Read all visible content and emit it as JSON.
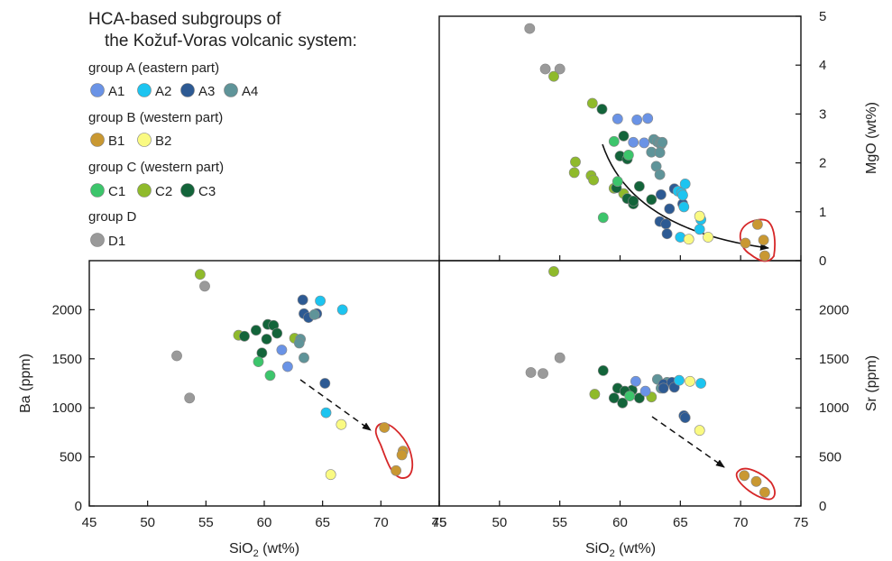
{
  "legend": {
    "title_line1": "HCA-based subgroups of",
    "title_line2": "the Kožuf-Voras volcanic system:",
    "groups": [
      {
        "label": "group A (eastern part)",
        "items": [
          {
            "key": "A1",
            "label": "A1",
            "color": "#6a93e6"
          },
          {
            "key": "A2",
            "label": "A2",
            "color": "#1cc4f0"
          },
          {
            "key": "A3",
            "label": "A3",
            "color": "#2d5a93"
          },
          {
            "key": "A4",
            "label": "A4",
            "color": "#5f9499"
          }
        ]
      },
      {
        "label": "group B (western part)",
        "items": [
          {
            "key": "B1",
            "label": "B1",
            "color": "#c99832"
          },
          {
            "key": "B2",
            "label": "B2",
            "color": "#fafa82"
          }
        ]
      },
      {
        "label": "group C (western part)",
        "items": [
          {
            "key": "C1",
            "label": "C1",
            "color": "#3cc56b"
          },
          {
            "key": "C2",
            "label": "C2",
            "color": "#8fba2b"
          },
          {
            "key": "C3",
            "label": "C3",
            "color": "#13643a"
          }
        ]
      },
      {
        "label": "group D",
        "items": [
          {
            "key": "D1",
            "label": "D1",
            "color": "#9a9a9a"
          }
        ]
      }
    ]
  },
  "chart_data": [
    {
      "type": "scatter",
      "panel": "MgO",
      "xlabel_main": "SiO",
      "xlabel_sub": "2",
      "xlabel_tail": " (wt%)",
      "ylabel": "MgO (wt%)",
      "xlim": [
        45,
        75
      ],
      "ylim": [
        0,
        5
      ],
      "xticks": [],
      "yticks": [
        "0",
        "1",
        "2",
        "3",
        "4",
        "5"
      ],
      "annotation": "curved solid arrow from (58.3, 2.4) to (72.3, 0.25); red outline around high-SiO2 B1 samples",
      "series": [
        {
          "key": "D1",
          "points": [
            [
              52.5,
              4.75
            ],
            [
              53.8,
              3.92
            ],
            [
              55.0,
              3.92
            ]
          ]
        },
        {
          "key": "C2",
          "points": [
            [
              54.5,
              3.77
            ],
            [
              57.7,
              3.22
            ],
            [
              56.3,
              2.02
            ],
            [
              56.2,
              1.8
            ],
            [
              57.6,
              1.74
            ],
            [
              57.8,
              1.65
            ],
            [
              60.3,
              1.37
            ],
            [
              59.5,
              1.48
            ]
          ]
        },
        {
          "key": "C3",
          "points": [
            [
              58.5,
              3.1
            ],
            [
              60.3,
              2.55
            ],
            [
              60.0,
              2.14
            ],
            [
              60.6,
              2.08
            ],
            [
              59.7,
              1.49
            ],
            [
              60.6,
              1.27
            ],
            [
              61.1,
              1.16
            ],
            [
              61.6,
              1.52
            ],
            [
              62.6,
              1.25
            ],
            [
              61.1,
              1.22
            ]
          ]
        },
        {
          "key": "C1",
          "points": [
            [
              59.5,
              2.44
            ],
            [
              59.8,
              1.62
            ],
            [
              58.6,
              0.88
            ],
            [
              60.7,
              2.16
            ]
          ]
        },
        {
          "key": "A1",
          "points": [
            [
              59.8,
              2.9
            ],
            [
              61.1,
              2.42
            ],
            [
              61.4,
              2.88
            ],
            [
              62.3,
              2.91
            ],
            [
              62.0,
              2.41
            ]
          ]
        },
        {
          "key": "A4",
          "points": [
            [
              62.8,
              2.48
            ],
            [
              63.1,
              2.43
            ],
            [
              63.3,
              2.4
            ],
            [
              63.4,
              2.38
            ],
            [
              63.5,
              2.42
            ],
            [
              62.6,
              2.22
            ],
            [
              63.3,
              2.21
            ],
            [
              63.0,
              1.93
            ],
            [
              63.3,
              1.76
            ]
          ]
        },
        {
          "key": "A3",
          "points": [
            [
              63.4,
              1.35
            ],
            [
              63.3,
              0.8
            ],
            [
              63.8,
              0.75
            ],
            [
              63.9,
              0.55
            ],
            [
              64.1,
              1.06
            ],
            [
              64.5,
              1.47
            ],
            [
              65.2,
              1.16
            ]
          ]
        },
        {
          "key": "A2",
          "points": [
            [
              64.8,
              1.42
            ],
            [
              65.1,
              1.39
            ],
            [
              65.4,
              1.57
            ],
            [
              65.2,
              1.34
            ],
            [
              65.3,
              1.1
            ],
            [
              65.0,
              0.48
            ],
            [
              66.7,
              0.84
            ],
            [
              66.6,
              0.64
            ]
          ]
        },
        {
          "key": "B2",
          "points": [
            [
              65.7,
              0.44
            ],
            [
              66.6,
              0.91
            ],
            [
              67.3,
              0.48
            ]
          ]
        },
        {
          "key": "B1",
          "points": [
            [
              70.4,
              0.36
            ],
            [
              71.4,
              0.74
            ],
            [
              71.9,
              0.42
            ],
            [
              72.0,
              0.1
            ]
          ]
        }
      ]
    },
    {
      "type": "scatter",
      "panel": "Ba",
      "xlabel_main": "SiO",
      "xlabel_sub": "2",
      "xlabel_tail": " (wt%)",
      "ylabel": "Ba (ppm)",
      "xlim": [
        45,
        75
      ],
      "ylim": [
        0,
        2500
      ],
      "xticks": [
        "45",
        "50",
        "55",
        "60",
        "65",
        "70",
        "75"
      ],
      "yticks": [
        "0",
        "500",
        "1000",
        "1500",
        "2000"
      ],
      "annotation": "dashed arrow from (62.8, 1270) to (69.8, 760); red outline around high-SiO2 B1 samples",
      "series": [
        {
          "key": "D1",
          "points": [
            [
              54.9,
              2240
            ],
            [
              52.5,
              1530
            ],
            [
              53.6,
              1100
            ]
          ]
        },
        {
          "key": "C2",
          "points": [
            [
              54.5,
              2360
            ],
            [
              57.8,
              1740
            ],
            [
              62.6,
              1710
            ]
          ]
        },
        {
          "key": "C3",
          "points": [
            [
              58.3,
              1730
            ],
            [
              59.3,
              1790
            ],
            [
              60.2,
              1700
            ],
            [
              60.3,
              1850
            ],
            [
              60.8,
              1840
            ],
            [
              61.1,
              1760
            ],
            [
              59.8,
              1560
            ]
          ]
        },
        {
          "key": "C1",
          "points": [
            [
              59.5,
              1470
            ],
            [
              60.5,
              1330
            ]
          ]
        },
        {
          "key": "A1",
          "points": [
            [
              61.5,
              1590
            ],
            [
              62.0,
              1420
            ]
          ]
        },
        {
          "key": "A3",
          "points": [
            [
              63.3,
              2100
            ],
            [
              63.4,
              1960
            ],
            [
              63.8,
              1920
            ],
            [
              64.5,
              1960
            ],
            [
              65.2,
              1250
            ]
          ]
        },
        {
          "key": "A4",
          "points": [
            [
              63.1,
              1700
            ],
            [
              63.0,
              1660
            ],
            [
              63.4,
              1510
            ],
            [
              64.3,
              1950
            ]
          ]
        },
        {
          "key": "A2",
          "points": [
            [
              64.8,
              2090
            ],
            [
              66.7,
              2000
            ],
            [
              65.3,
              950
            ]
          ]
        },
        {
          "key": "B2",
          "points": [
            [
              66.6,
              830
            ],
            [
              65.7,
              320
            ]
          ]
        },
        {
          "key": "B1",
          "points": [
            [
              70.3,
              800
            ],
            [
              71.9,
              560
            ],
            [
              71.8,
              520
            ],
            [
              71.3,
              360
            ]
          ]
        }
      ]
    },
    {
      "type": "scatter",
      "panel": "Sr",
      "xlabel_main": "SiO",
      "xlabel_sub": "2",
      "xlabel_tail": " (wt%)",
      "ylabel": "Sr (ppm)",
      "xlim": [
        45,
        75
      ],
      "ylim": [
        0,
        2500
      ],
      "xticks": [
        "45",
        "50",
        "55",
        "60",
        "65",
        "70",
        "75"
      ],
      "yticks": [
        "0",
        "500",
        "1000",
        "1500",
        "2000"
      ],
      "annotation": "dashed arrow from (62.8, 930) to (68.8, 380); red outline around high-SiO2 B1 samples",
      "series": [
        {
          "key": "C2",
          "points": [
            [
              54.5,
              2390
            ],
            [
              57.9,
              1140
            ],
            [
              62.6,
              1110
            ]
          ]
        },
        {
          "key": "D1",
          "points": [
            [
              55.0,
              1510
            ],
            [
              52.6,
              1360
            ],
            [
              53.6,
              1350
            ]
          ]
        },
        {
          "key": "C3",
          "points": [
            [
              58.6,
              1380
            ],
            [
              59.8,
              1200
            ],
            [
              59.5,
              1100
            ],
            [
              60.2,
              1050
            ],
            [
              61.0,
              1180
            ],
            [
              61.6,
              1100
            ],
            [
              60.4,
              1170
            ]
          ]
        },
        {
          "key": "C1",
          "points": [
            [
              60.8,
              1120
            ]
          ]
        },
        {
          "key": "A1",
          "points": [
            [
              61.3,
              1270
            ],
            [
              62.1,
              1170
            ]
          ]
        },
        {
          "key": "A4",
          "points": [
            [
              63.1,
              1290
            ],
            [
              63.4,
              1200
            ],
            [
              63.9,
              1260
            ]
          ]
        },
        {
          "key": "A3",
          "points": [
            [
              63.6,
              1240
            ],
            [
              64.3,
              1260
            ],
            [
              63.6,
              1200
            ],
            [
              64.5,
              1210
            ],
            [
              65.3,
              920
            ],
            [
              65.4,
              900
            ]
          ]
        },
        {
          "key": "A2",
          "points": [
            [
              64.9,
              1280
            ],
            [
              66.7,
              1250
            ]
          ]
        },
        {
          "key": "B2",
          "points": [
            [
              65.8,
              1270
            ],
            [
              66.6,
              770
            ]
          ]
        },
        {
          "key": "B1",
          "points": [
            [
              70.3,
              310
            ],
            [
              71.3,
              250
            ],
            [
              72.0,
              140
            ]
          ]
        }
      ]
    }
  ]
}
